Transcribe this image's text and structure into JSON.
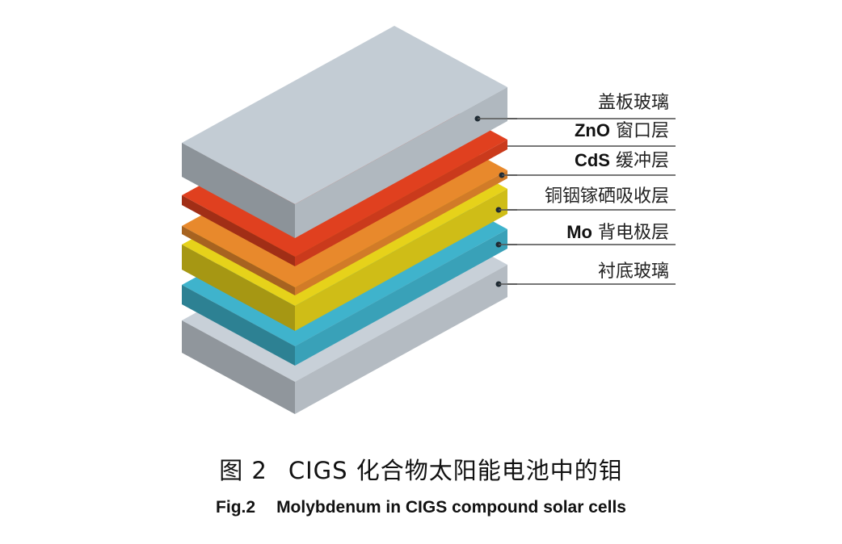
{
  "layers": [
    {
      "label_cn": "盖板玻璃",
      "label_prefix": "",
      "color": "#c3ccd4"
    },
    {
      "label_cn": "窗口层",
      "label_prefix": "ZnO",
      "color": "#e0401f"
    },
    {
      "label_cn": "缓冲层",
      "label_prefix": "CdS",
      "color": "#e8892c"
    },
    {
      "label_cn": "铜铟镓硒吸收层",
      "label_prefix": "",
      "color": "#e6d21a"
    },
    {
      "label_cn": "背电极层",
      "label_prefix": "Mo",
      "color": "#3fb3cc"
    },
    {
      "label_cn": "衬底玻璃",
      "label_prefix": "",
      "color": "#c8d0d8"
    }
  ],
  "caption": {
    "cn_fig": "图 2",
    "cn_text": "CIGS 化合物太阳能电池中的钼",
    "en_fig": "Fig.2",
    "en_text": "Molybdenum in CIGS compound solar cells"
  }
}
